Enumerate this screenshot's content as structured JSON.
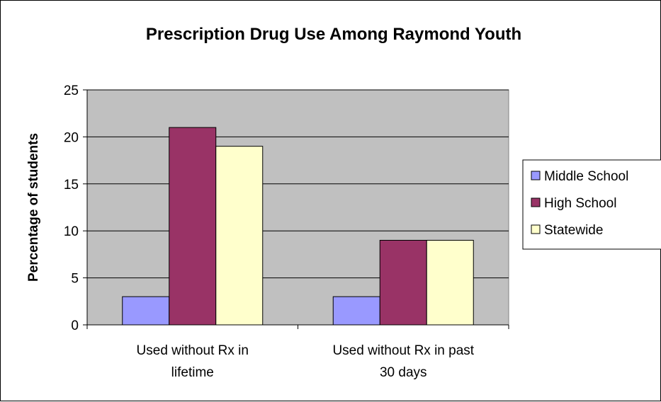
{
  "chart_data": {
    "type": "bar",
    "title": "Prescription Drug Use Among Raymond Youth",
    "xlabel": "",
    "ylabel": "Percentage of students",
    "ylim": [
      0,
      25
    ],
    "yticks": [
      0,
      5,
      10,
      15,
      20,
      25
    ],
    "categories": [
      [
        "Used without Rx in",
        "lifetime"
      ],
      [
        "Used without Rx in past",
        "30 days"
      ]
    ],
    "series": [
      {
        "name": "Middle School",
        "values": [
          3,
          3
        ],
        "color": "#9999FF"
      },
      {
        "name": "High School",
        "values": [
          21,
          9
        ],
        "color": "#993366"
      },
      {
        "name": "Statewide",
        "values": [
          19,
          9
        ],
        "color": "#FFFFCC"
      }
    ],
    "plot_background": "#C0C0C0",
    "grid": true,
    "legend_position": "right"
  }
}
